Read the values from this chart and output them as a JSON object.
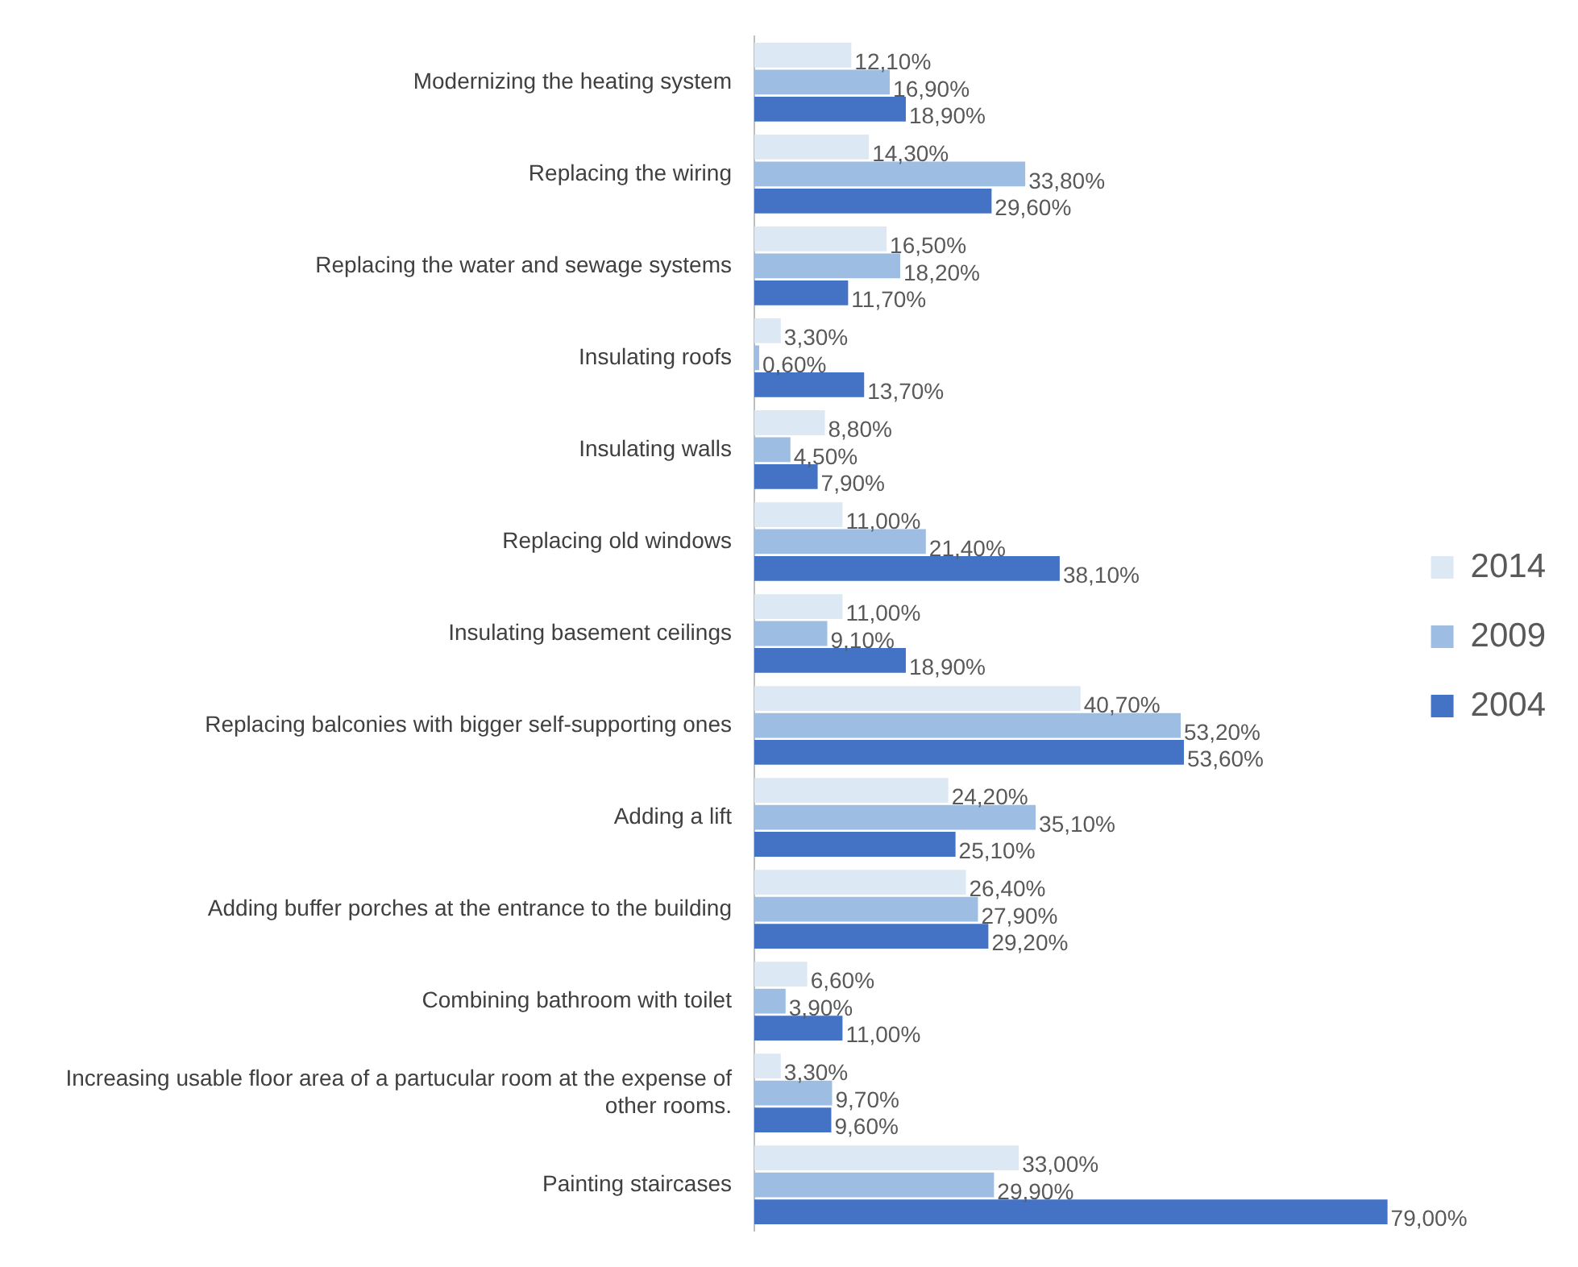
{
  "chart_data": {
    "type": "bar",
    "orientation": "horizontal",
    "categories": [
      "Modernizing the heating system",
      "Replacing the wiring",
      "Replacing the water and sewage systems",
      "Insulating roofs",
      "Insulating walls",
      "Replacing old windows",
      "Insulating basement ceilings",
      "Replacing balconies with bigger self-supporting ones",
      "Adding a lift",
      "Adding buffer porches at the entrance to the building",
      "Combining bathroom with toilet",
      "Increasing usable floor area of a partucular room at the expense of other rooms.",
      "Painting staircases"
    ],
    "series": [
      {
        "name": "2014",
        "color": "#dde8f5",
        "values": [
          12.1,
          14.3,
          16.5,
          3.3,
          8.8,
          11.0,
          11.0,
          40.7,
          24.2,
          26.4,
          6.6,
          3.3,
          33.0
        ],
        "value_labels": [
          "12,10%",
          "14,30%",
          "16,50%",
          "3,30%",
          "8,80%",
          "11,00%",
          "11,00%",
          "40,70%",
          "24,20%",
          "26,40%",
          "6,60%",
          "3,30%",
          "33,00%"
        ]
      },
      {
        "name": "2009",
        "color": "#9dbde2",
        "values": [
          16.9,
          33.8,
          18.2,
          0.6,
          4.5,
          21.4,
          9.1,
          53.2,
          35.1,
          27.9,
          3.9,
          9.7,
          29.9
        ],
        "value_labels": [
          "16,90%",
          "33,80%",
          "18,20%",
          "0,60%",
          "4,50%",
          "21,40%",
          "9,10%",
          "53,20%",
          "35,10%",
          "27,90%",
          "3,90%",
          "9,70%",
          "29,90%"
        ]
      },
      {
        "name": "2004",
        "color": "#4472c4",
        "values": [
          18.9,
          29.6,
          11.7,
          13.7,
          7.9,
          38.1,
          18.9,
          53.6,
          25.1,
          29.2,
          11.0,
          9.6,
          79.0
        ],
        "value_labels": [
          "18,90%",
          "29,60%",
          "11,70%",
          "13,70%",
          "7,90%",
          "38,10%",
          "18,90%",
          "53,60%",
          "25,10%",
          "29,20%",
          "11,00%",
          "9,60%",
          "79,00%"
        ]
      }
    ],
    "legend": "right",
    "tick_labels": "y"
  }
}
